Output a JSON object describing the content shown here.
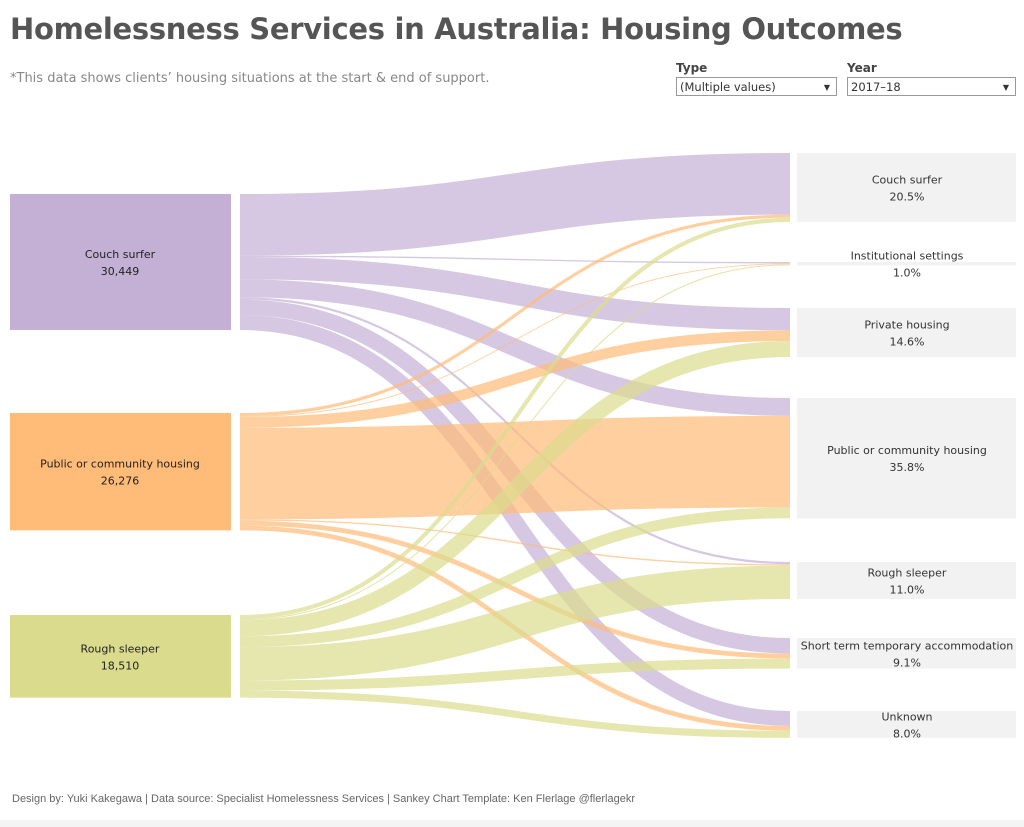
{
  "header": {
    "title": "Homelessness Services in Australia: Housing Outcomes",
    "subtitle": "*This data shows clients’ housing situations at the start & end of support."
  },
  "filters": {
    "type": {
      "label": "Type",
      "value": "(Multiple values)"
    },
    "year": {
      "label": "Year",
      "value": "2017–18"
    }
  },
  "footer": "Design by: Yuki Kakegawa  | Data source: Specialist Homelessness Services | Sankey Chart Template: Ken Flerlage @flerlagekr",
  "chart_data": {
    "type": "sankey",
    "sources": [
      {
        "name": "Couch surfer",
        "value": "30,449",
        "count": 30449,
        "color": "#c5b0d5"
      },
      {
        "name": "Public or community housing",
        "value": "26,276",
        "count": 26276,
        "color": "#ffbb78"
      },
      {
        "name": "Rough sleeper",
        "value": "18,510",
        "count": 18510,
        "color": "#dbdb8d"
      }
    ],
    "targets": [
      {
        "name": "Couch surfer",
        "pct": "20.5%"
      },
      {
        "name": "Institutional settings",
        "pct": "1.0%"
      },
      {
        "name": "Private housing",
        "pct": "14.6%"
      },
      {
        "name": "Public or community housing",
        "pct": "35.8%"
      },
      {
        "name": "Rough sleeper",
        "pct": "11.0%"
      },
      {
        "name": "Short term temporary accommodation",
        "pct": "9.1%"
      },
      {
        "name": "Unknown",
        "pct": "8.0%"
      }
    ],
    "links": [
      [
        13800,
        300,
        5000,
        4000,
        500,
        3500,
        3349
      ],
      [
        700,
        200,
        2400,
        20500,
        300,
        1100,
        1076
      ],
      [
        923,
        252,
        3584,
        2434,
        7476,
        2246,
        1595
      ]
    ]
  }
}
